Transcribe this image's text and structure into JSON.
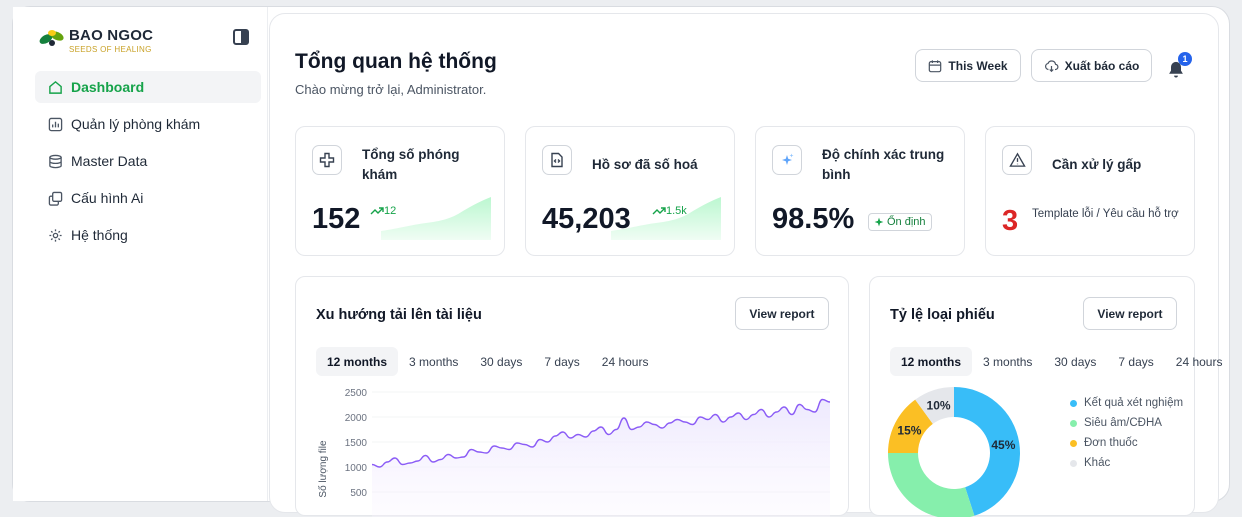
{
  "brand": {
    "name": "BAO NGOC",
    "tagline": "SEEDS OF HEALING"
  },
  "sidebar": {
    "items": [
      {
        "label": "Dashboard",
        "icon": "home-icon",
        "active": true
      },
      {
        "label": "Quản lý phòng khám",
        "icon": "bar-chart-icon",
        "active": false
      },
      {
        "label": "Master Data",
        "icon": "database-icon",
        "active": false
      },
      {
        "label": "Cấu hình Ai",
        "icon": "copy-icon",
        "active": false
      },
      {
        "label": "Hệ thống",
        "icon": "gear-icon",
        "active": false
      }
    ]
  },
  "header": {
    "title": "Tổng quan hệ thống",
    "subtitle": "Chào mừng trở lại, Administrator.",
    "period_label": "This Week",
    "export_label": "Xuất báo cáo",
    "notification_count": "1"
  },
  "stats": {
    "clinics": {
      "title": "Tổng số phóng khám",
      "value": "152",
      "trend": "12"
    },
    "records": {
      "title": "Hồ sơ đã số hoá",
      "value": "45,203",
      "trend": "1.5k"
    },
    "accuracy": {
      "title": "Độ chính xác trung bình",
      "value": "98.5%",
      "status": "Ổn định"
    },
    "urgent": {
      "title": "Cần xử lý gấp",
      "value": "3",
      "desc": "Template lỗi / Yêu cầu hỗ trợ"
    }
  },
  "upload_panel": {
    "title": "Xu hướng tải lên tài liệu",
    "button": "View report",
    "tabs": [
      "12 months",
      "3 months",
      "30 days",
      "7 days",
      "24 hours"
    ]
  },
  "ratio_panel": {
    "title": "Tỷ lệ loại phiếu",
    "button": "View report",
    "tabs": [
      "12 months",
      "3 months",
      "30 days",
      "7 days",
      "24 hours"
    ]
  },
  "chart_data": [
    {
      "type": "line",
      "ylabel": "Số lượng file",
      "yticks": [
        500,
        1000,
        1500,
        2000,
        2500
      ],
      "ylim": [
        0,
        2600
      ],
      "values": [
        1050,
        1000,
        1100,
        1180,
        1050,
        1080,
        1120,
        1230,
        1100,
        1150,
        1250,
        1180,
        1200,
        1350,
        1300,
        1280,
        1420,
        1380,
        1350,
        1480,
        1450,
        1400,
        1550,
        1500,
        1620,
        1700,
        1580,
        1650,
        1600,
        1720,
        1800,
        1650,
        1750,
        1980,
        1750,
        1800,
        1900,
        1850,
        1780,
        1880,
        1950,
        1900,
        1850,
        2000,
        1950,
        2050,
        1900,
        2000,
        2080,
        1950,
        2050,
        2150,
        2000,
        2100,
        2200,
        2050,
        2250,
        2150,
        2100,
        2350,
        2300
      ],
      "grid": true,
      "color": "#8b5cf6"
    },
    {
      "type": "pie",
      "slices": [
        {
          "label": "Kết quả xét nghiệm",
          "value": 45,
          "color": "#38bdf8"
        },
        {
          "label": "Siêu âm/CĐHA",
          "value": 30,
          "color": "#86efac"
        },
        {
          "label": "Đơn thuốc",
          "value": 15,
          "color": "#fbbf24"
        },
        {
          "label": "Khác",
          "value": 10,
          "color": "#e5e7eb"
        }
      ],
      "data_labels": [
        "45%",
        "15%",
        "10%"
      ]
    }
  ]
}
